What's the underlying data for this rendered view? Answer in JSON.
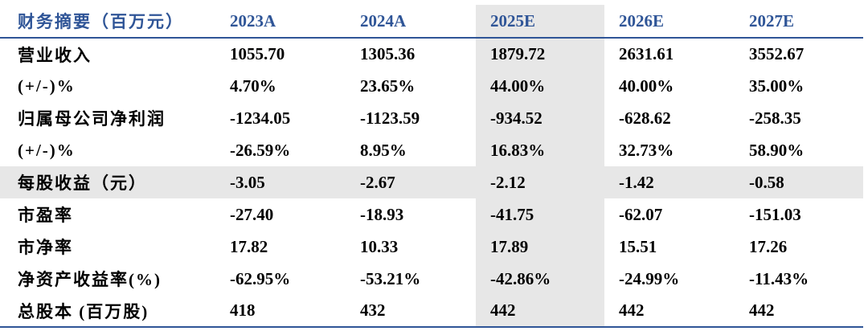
{
  "table": {
    "headers": [
      "财务摘要（百万元）",
      "2023A",
      "2024A",
      "2025E",
      "2026E",
      "2027E"
    ],
    "highlight_color": "#E7E7E7",
    "header_color": "#2F5597",
    "rows": [
      {
        "label": "营业收入",
        "values": [
          "1055.70",
          "1305.36",
          "1879.72",
          "2631.61",
          "3552.67"
        ]
      },
      {
        "label": "(+/-)%",
        "values": [
          "4.70%",
          "23.65%",
          "44.00%",
          "40.00%",
          "35.00%"
        ]
      },
      {
        "label": "归属母公司净利润",
        "values": [
          "-1234.05",
          "-1123.59",
          "-934.52",
          "-628.62",
          "-258.35"
        ]
      },
      {
        "label": "(+/-)%",
        "values": [
          "-26.59%",
          "8.95%",
          "16.83%",
          "32.73%",
          "58.90%"
        ]
      },
      {
        "label": "每股收益（元）",
        "values": [
          "-3.05",
          "-2.67",
          "-2.12",
          "-1.42",
          "-0.58"
        ]
      },
      {
        "label": "市盈率",
        "values": [
          "-27.40",
          "-18.93",
          "-41.75",
          "-62.07",
          "-151.03"
        ]
      },
      {
        "label": "市净率",
        "values": [
          "17.82",
          "10.33",
          "17.89",
          "15.51",
          "17.26"
        ]
      },
      {
        "label": "净资产收益率(%)",
        "values": [
          "-62.95%",
          "-53.21%",
          "-42.86%",
          "-24.99%",
          "-11.43%"
        ]
      },
      {
        "label": "总股本 (百万股)",
        "values": [
          "418",
          "432",
          "442",
          "442",
          "442"
        ]
      }
    ]
  }
}
